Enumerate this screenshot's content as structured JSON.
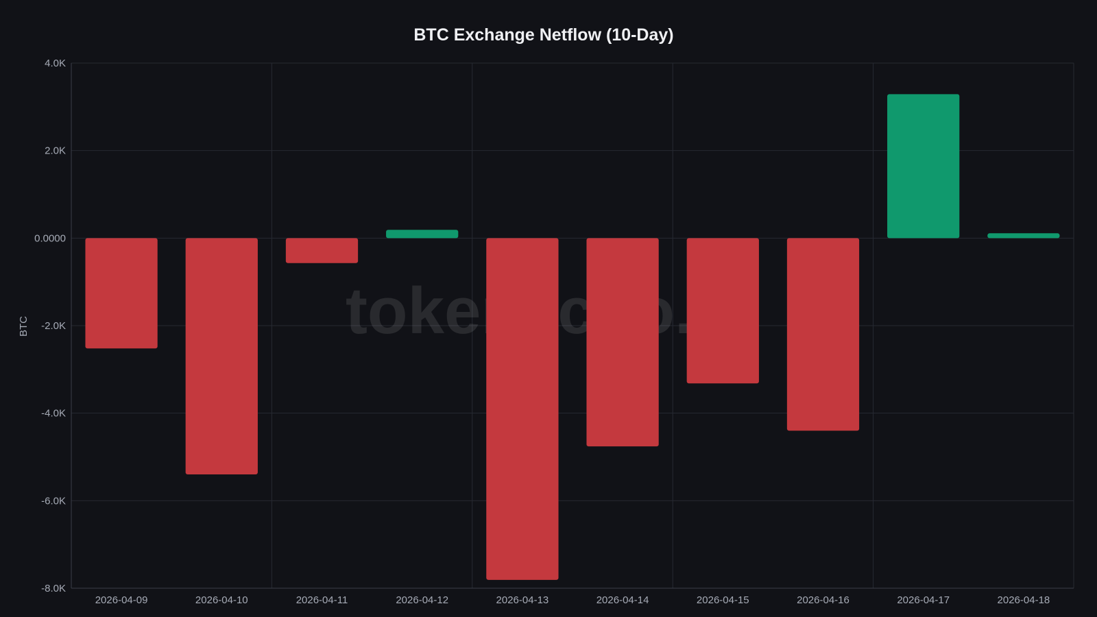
{
  "chart_data": {
    "type": "bar",
    "title": "BTC Exchange Netflow (10-Day)",
    "xlabel": "",
    "ylabel": "BTC",
    "ylim": [
      -8000,
      4000
    ],
    "yticks": [
      4000,
      2000,
      0,
      -2000,
      -4000,
      -6000,
      -8000
    ],
    "ytick_labels": [
      "4.0K",
      "2.0K",
      "0.0000",
      "-2.0K",
      "-4.0K",
      "-6.0K",
      "-8.0K"
    ],
    "categories": [
      "2026-04-09",
      "2026-04-10",
      "2026-04-11",
      "2026-04-12",
      "2026-04-13",
      "2026-04-14",
      "2026-04-15",
      "2026-04-16",
      "2026-04-17",
      "2026-04-18"
    ],
    "values": [
      -2520,
      -5400,
      -570,
      190,
      -7810,
      -4760,
      -3320,
      -4400,
      3290,
      110
    ],
    "grid": true,
    "colors": {
      "positive": "#10996d",
      "negative": "#c4393e"
    }
  },
  "watermark": "tokenecho.io"
}
